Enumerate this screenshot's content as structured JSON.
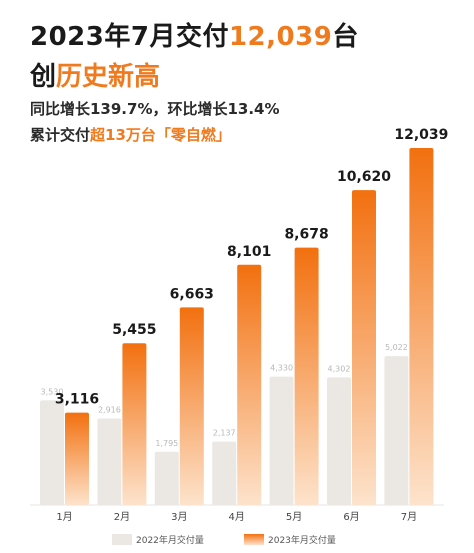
{
  "header": {
    "line1_prefix": "2023年7月交付",
    "line1_number": "12,039",
    "line1_suffix": "台",
    "line2_prefix": "创",
    "line2_accent": "历史新高",
    "sub1": "同比增长139.7%，环比增长13.4%",
    "sub2_prefix": "累计交付",
    "sub2_accent": "超13万台「零自燃」"
  },
  "colors": {
    "accent": "#f07a1e",
    "bar_2022": "#ebe8e4",
    "bar_2023_top": "#f2700f",
    "bar_2023_bottom": "#fde3cc"
  },
  "chart_data": {
    "type": "bar",
    "categories": [
      "1月",
      "2月",
      "3月",
      "4月",
      "5月",
      "6月",
      "7月"
    ],
    "series": [
      {
        "name": "2022年月交付量",
        "values": [
          3530,
          2916,
          1795,
          2137,
          4330,
          4302,
          5022
        ]
      },
      {
        "name": "2023年月交付量",
        "values": [
          3116,
          5455,
          6663,
          8101,
          8678,
          10620,
          12039
        ]
      }
    ],
    "value_labels_2022": [
      "3,530",
      "2,916",
      "1,795",
      "2,137",
      "4,330",
      "4,302",
      "5,022"
    ],
    "value_labels_2023": [
      "3,116",
      "5,455",
      "6,663",
      "8,101",
      "8,678",
      "10,620",
      "12,039"
    ],
    "ylim": [
      0,
      12039
    ],
    "grid": false,
    "legend_position": "bottom"
  }
}
